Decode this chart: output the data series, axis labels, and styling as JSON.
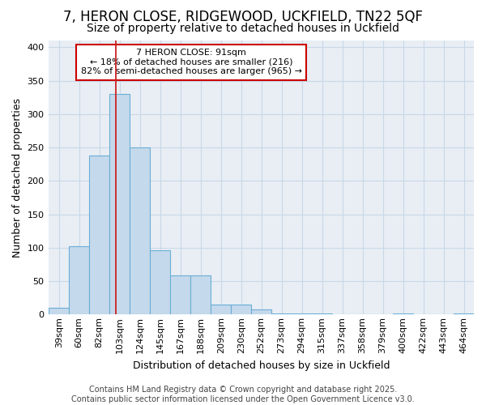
{
  "title_line1": "7, HERON CLOSE, RIDGEWOOD, UCKFIELD, TN22 5QF",
  "title_line2": "Size of property relative to detached houses in Uckfield",
  "xlabel": "Distribution of detached houses by size in Uckfield",
  "ylabel": "Number of detached properties",
  "categories": [
    "39sqm",
    "60sqm",
    "82sqm",
    "103sqm",
    "124sqm",
    "145sqm",
    "167sqm",
    "188sqm",
    "209sqm",
    "230sqm",
    "252sqm",
    "273sqm",
    "294sqm",
    "315sqm",
    "337sqm",
    "358sqm",
    "379sqm",
    "400sqm",
    "422sqm",
    "443sqm",
    "464sqm"
  ],
  "values": [
    10,
    102,
    238,
    330,
    250,
    96,
    58,
    58,
    15,
    15,
    8,
    2,
    2,
    1,
    0,
    0,
    0,
    1,
    0,
    0,
    1
  ],
  "bar_color": "#c5d9ec",
  "bar_edge_color": "#6aaed6",
  "grid_color": "#c8d8e8",
  "plot_bg_color": "#e8eef4",
  "fig_bg_color": "#ffffff",
  "red_line_x": 2.82,
  "annotation_text": "7 HERON CLOSE: 91sqm\n← 18% of detached houses are smaller (216)\n82% of semi-detached houses are larger (965) →",
  "annotation_box_facecolor": "#ffffff",
  "annotation_border_color": "#cc0000",
  "footer_text": "Contains HM Land Registry data © Crown copyright and database right 2025.\nContains public sector information licensed under the Open Government Licence v3.0.",
  "ylim_max": 410,
  "title_fontsize": 12,
  "subtitle_fontsize": 10,
  "axis_label_fontsize": 9,
  "tick_fontsize": 8,
  "annotation_fontsize": 8,
  "footer_fontsize": 7
}
